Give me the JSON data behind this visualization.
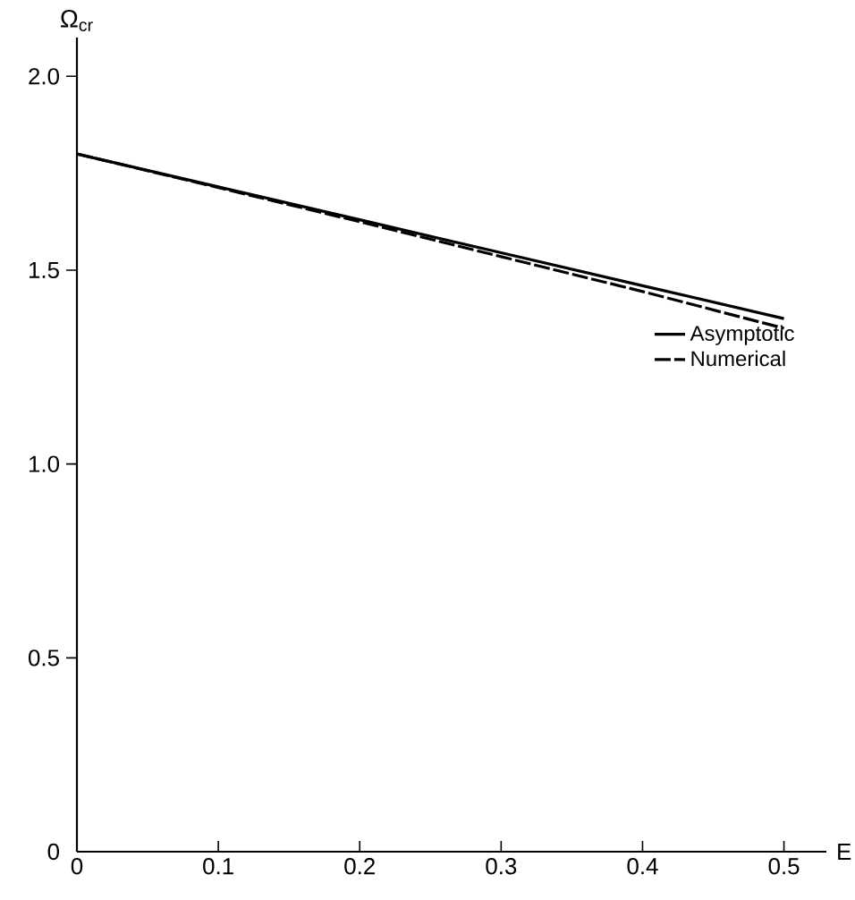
{
  "chart_data": {
    "type": "line",
    "xlabel": "E",
    "ylabel": "Ω$_{cr}$",
    "x": [
      0,
      0.1,
      0.2,
      0.3,
      0.4,
      0.5
    ],
    "series": [
      {
        "name": "Asymptotic",
        "color": "#000000",
        "line_style": "solid",
        "values": [
          1.8,
          1.715,
          1.63,
          1.545,
          1.46,
          1.375
        ]
      },
      {
        "name": "Numerical",
        "color": "#000000",
        "line_style": "dashed",
        "values": [
          1.8,
          1.713,
          1.625,
          1.535,
          1.445,
          1.35
        ]
      }
    ],
    "xlim": [
      0,
      0.53
    ],
    "ylim": [
      0,
      2.1
    ],
    "xticks": [
      0,
      0.1,
      0.2,
      0.3,
      0.4,
      0.5
    ],
    "yticks": [
      0,
      0.5,
      {
        "value": 1.0,
        "label": "1.0"
      },
      1.5,
      {
        "value": 2.0,
        "label": "2.0"
      }
    ],
    "grid": false,
    "legend": "right",
    "marker": "none"
  }
}
